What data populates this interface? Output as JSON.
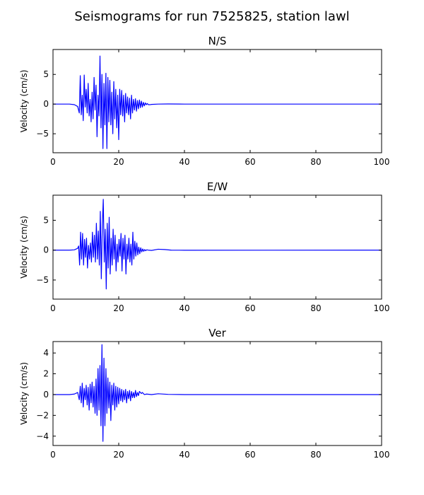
{
  "figure": {
    "suptitle": "Seismograms for run 7525825, station lawl"
  },
  "chart_data": [
    {
      "type": "line",
      "title": "N/S",
      "xlabel": "",
      "ylabel": "Velocity (cm/s)",
      "xlim": [
        0,
        100
      ],
      "ylim": [
        -8.2,
        9.2
      ],
      "xticks": [
        0,
        20,
        40,
        60,
        80,
        100
      ],
      "yticks": [
        -5,
        0,
        5
      ],
      "grid": false,
      "color": "#0000ff",
      "series": [
        {
          "x": [
            0,
            5,
            6.5,
            7.5,
            8,
            8.3,
            8.6,
            8.9,
            9.2,
            9.5,
            9.8,
            10.1,
            10.4,
            10.7,
            11.0,
            11.3,
            11.6,
            11.9,
            12.2,
            12.5,
            12.8,
            13.1,
            13.4,
            13.7,
            14.0,
            14.3,
            14.6,
            14.9,
            15.2,
            15.5,
            15.8,
            16.1,
            16.4,
            16.7,
            17.0,
            17.3,
            17.6,
            17.9,
            18.2,
            18.5,
            18.8,
            19.1,
            19.4,
            19.7,
            20.0,
            20.3,
            20.6,
            20.9,
            21.2,
            21.5,
            21.8,
            22.1,
            22.4,
            22.7,
            23.0,
            23.3,
            23.6,
            23.9,
            24.2,
            24.5,
            24.8,
            25.1,
            25.4,
            25.7,
            26.0,
            26.3,
            26.6,
            26.9,
            27.2,
            27.5,
            27.8,
            28.1,
            28.4,
            28.7,
            29.0,
            29.5,
            30,
            32,
            35,
            40,
            100
          ],
          "y": [
            0,
            0,
            -0.1,
            -0.4,
            -1.5,
            4.8,
            -1.8,
            1.5,
            -2.8,
            4.9,
            -0.5,
            2.5,
            -1.5,
            3.5,
            -2.0,
            0.8,
            -3.0,
            2.0,
            -2.5,
            4.5,
            -1.0,
            3.2,
            -5.5,
            1.5,
            -2.0,
            8.1,
            -4.0,
            5.0,
            -7.5,
            3.5,
            -3.5,
            5.2,
            -7.5,
            4.5,
            -3.0,
            4.0,
            -3.5,
            2.0,
            -5.0,
            3.8,
            -2.5,
            2.5,
            -4.0,
            1.5,
            -6.0,
            2.5,
            -1.8,
            2.3,
            -2.0,
            1.5,
            -3.0,
            1.8,
            -1.5,
            1.2,
            -1.8,
            1.0,
            -2.5,
            1.5,
            -1.5,
            0.8,
            -1.0,
            0.9,
            -1.2,
            0.6,
            -0.8,
            0.7,
            -0.6,
            0.5,
            -0.5,
            0.3,
            -0.3,
            0.2,
            -0.1,
            0.1,
            -0.1,
            -0.1,
            -0.05,
            0.0,
            0.02,
            0.0,
            0.0
          ]
        }
      ]
    },
    {
      "type": "line",
      "title": "E/W",
      "xlabel": "",
      "ylabel": "Velocity (cm/s)",
      "xlim": [
        0,
        100
      ],
      "ylim": [
        -8.2,
        9.2
      ],
      "xticks": [
        0,
        20,
        40,
        60,
        80,
        100
      ],
      "yticks": [
        -5,
        0,
        5
      ],
      "grid": false,
      "color": "#0000ff",
      "series": [
        {
          "x": [
            0,
            5,
            6.5,
            7.5,
            7.8,
            8.1,
            8.4,
            8.7,
            9.0,
            9.3,
            9.6,
            9.9,
            10.2,
            10.5,
            10.8,
            11.1,
            11.4,
            11.7,
            12.0,
            12.3,
            12.6,
            12.9,
            13.2,
            13.5,
            13.8,
            14.1,
            14.4,
            14.7,
            15.0,
            15.3,
            15.6,
            15.9,
            16.2,
            16.5,
            16.8,
            17.1,
            17.4,
            17.7,
            18.0,
            18.3,
            18.6,
            18.9,
            19.2,
            19.5,
            19.8,
            20.1,
            20.4,
            20.7,
            21.0,
            21.3,
            21.6,
            21.9,
            22.2,
            22.5,
            22.8,
            23.1,
            23.4,
            23.7,
            24.0,
            24.3,
            24.6,
            24.9,
            25.2,
            25.5,
            25.8,
            26.1,
            26.4,
            26.7,
            27.0,
            27.3,
            27.6,
            27.9,
            28.2,
            28.5,
            29,
            30,
            32,
            34,
            36,
            40,
            100
          ],
          "y": [
            0,
            0,
            0.05,
            0.3,
            0.7,
            -2.5,
            3.0,
            -1.5,
            2.8,
            -2.5,
            1.8,
            -1.2,
            2.0,
            -3.0,
            0.8,
            -1.5,
            1.2,
            -2.0,
            3.0,
            -1.2,
            2.5,
            -2.0,
            4.5,
            -1.5,
            3.2,
            -2.5,
            6.5,
            -4.8,
            4.0,
            8.5,
            -2.0,
            3.5,
            -6.5,
            4.5,
            -3.0,
            5.5,
            -4.0,
            2.0,
            -2.5,
            3.5,
            -1.5,
            2.5,
            -3.5,
            1.0,
            -2.0,
            1.8,
            -1.0,
            2.8,
            -3.5,
            2.0,
            -1.5,
            2.5,
            -4.0,
            1.0,
            -1.5,
            2.0,
            -2.0,
            1.0,
            -2.5,
            3.0,
            -1.5,
            1.5,
            -1.0,
            1.2,
            -0.8,
            0.5,
            -0.6,
            0.4,
            -0.3,
            0.2,
            -0.2,
            0.1,
            -0.1,
            0.05,
            0.0,
            -0.05,
            0.15,
            0.1,
            0.0,
            -0.02,
            0.0
          ]
        }
      ]
    },
    {
      "type": "line",
      "title": "Ver",
      "xlabel": "",
      "ylabel": "Velocity (cm/s)",
      "xlim": [
        0,
        100
      ],
      "ylim": [
        -4.9,
        5.1
      ],
      "xticks": [
        0,
        20,
        40,
        60,
        80,
        100
      ],
      "yticks": [
        -4,
        -2,
        0,
        2,
        4
      ],
      "grid": false,
      "color": "#0000ff",
      "series": [
        {
          "x": [
            0,
            5,
            6.5,
            7.5,
            8.0,
            8.3,
            8.6,
            8.9,
            9.2,
            9.5,
            9.8,
            10.1,
            10.4,
            10.7,
            11.0,
            11.3,
            11.6,
            11.9,
            12.2,
            12.5,
            12.8,
            13.1,
            13.4,
            13.7,
            14.0,
            14.3,
            14.6,
            14.9,
            15.2,
            15.5,
            15.8,
            16.1,
            16.4,
            16.7,
            17.0,
            17.3,
            17.6,
            17.9,
            18.2,
            18.5,
            18.8,
            19.1,
            19.4,
            19.7,
            20.0,
            20.3,
            20.6,
            20.9,
            21.2,
            21.5,
            21.8,
            22.1,
            22.4,
            22.7,
            23.0,
            23.3,
            23.6,
            23.9,
            24.2,
            24.5,
            24.8,
            25.1,
            25.4,
            25.7,
            26.0,
            26.3,
            26.6,
            26.9,
            27.2,
            27.5,
            27.8,
            28.5,
            30,
            32,
            35,
            40,
            100
          ],
          "y": [
            0,
            0,
            0.05,
            0.2,
            -0.5,
            0.8,
            -0.8,
            1.1,
            -1.2,
            0.6,
            -0.5,
            0.9,
            -1.0,
            0.7,
            -1.5,
            1.0,
            -0.8,
            1.2,
            -1.2,
            0.8,
            -1.8,
            1.5,
            -2.0,
            2.5,
            -1.5,
            2.8,
            -3.0,
            4.8,
            -4.5,
            3.5,
            -3.0,
            2.5,
            -1.8,
            1.6,
            -1.3,
            1.2,
            -2.5,
            0.9,
            -1.0,
            1.1,
            -1.5,
            0.8,
            -1.2,
            0.7,
            -0.9,
            0.6,
            -0.6,
            0.5,
            -0.7,
            0.4,
            -0.5,
            0.5,
            -0.8,
            0.3,
            -0.4,
            0.4,
            -0.6,
            0.3,
            -0.3,
            0.2,
            -0.3,
            0.4,
            -0.2,
            0.2,
            -0.1,
            0.3,
            0.2,
            0.1,
            0.2,
            0.1,
            0.0,
            0.05,
            0.0,
            0.08,
            0.02,
            0.0,
            0.0
          ]
        }
      ]
    }
  ]
}
